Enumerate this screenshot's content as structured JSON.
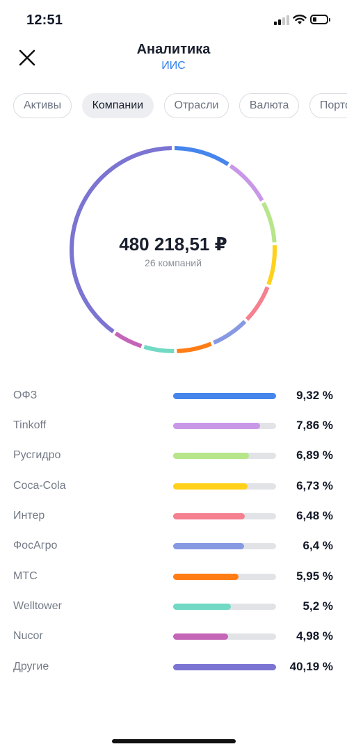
{
  "status_bar": {
    "time": "12:51"
  },
  "header": {
    "title": "Аналитика",
    "subtitle": "ИИС"
  },
  "tabs": [
    {
      "label": "Активы",
      "active": false
    },
    {
      "label": "Компании",
      "active": true
    },
    {
      "label": "Отрасли",
      "active": false
    },
    {
      "label": "Валюта",
      "active": false
    },
    {
      "label": "Портфе",
      "active": false
    }
  ],
  "summary": {
    "total": "480 218,51 ₽",
    "count_label": "26 компаний"
  },
  "chart_data": {
    "type": "pie",
    "categories": [
      "ОФЗ",
      "Tinkoff",
      "Русгидро",
      "Coca-Cola",
      "Интер",
      "ФосАгро",
      "МТС",
      "Welltower",
      "Nucor",
      "Другие"
    ],
    "values": [
      9.32,
      7.86,
      6.89,
      6.73,
      6.48,
      6.4,
      5.95,
      5.2,
      4.98,
      40.19
    ],
    "colors": [
      "#4585ec",
      "#c997e8",
      "#b6e58a",
      "#ffd11a",
      "#f5808f",
      "#8799e3",
      "#ff7d14",
      "#71d9c4",
      "#c465b8",
      "#7b74d2"
    ]
  },
  "legend": [
    {
      "name": "ОФЗ",
      "pct": "9,32 %"
    },
    {
      "name": "Tinkoff",
      "pct": "7,86 %"
    },
    {
      "name": "Русгидро",
      "pct": "6,89 %"
    },
    {
      "name": "Coca-Cola",
      "pct": "6,73 %"
    },
    {
      "name": "Интер",
      "pct": "6,48 %"
    },
    {
      "name": "ФосАгро",
      "pct": "6,4 %"
    },
    {
      "name": "МТС",
      "pct": "5,95 %"
    },
    {
      "name": "Welltower",
      "pct": "5,2 %"
    },
    {
      "name": "Nucor",
      "pct": "4,98 %"
    },
    {
      "name": "Другие",
      "pct": "40,19 %"
    }
  ]
}
